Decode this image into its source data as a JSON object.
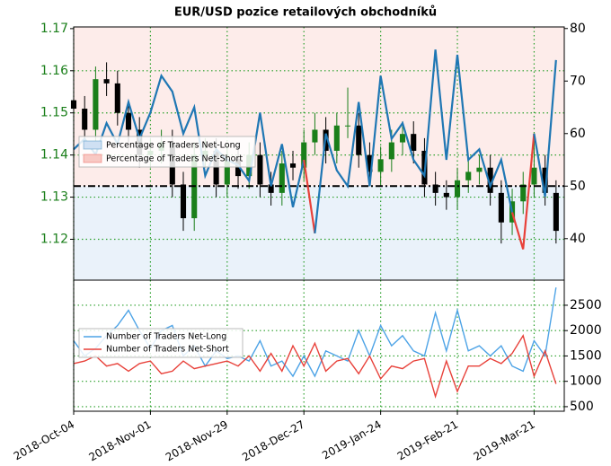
{
  "chart_data": [
    {
      "type": "candlestick",
      "title": "EUR/USD pozice retailových obchodníků",
      "x": [
        "2018-10-04",
        "2018-10-08",
        "2018-10-12",
        "2018-10-16",
        "2018-10-20",
        "2018-10-24",
        "2018-10-28",
        "2018-11-01",
        "2018-11-05",
        "2018-11-09",
        "2018-11-13",
        "2018-11-17",
        "2018-11-21",
        "2018-11-25",
        "2018-11-29",
        "2018-12-03",
        "2018-12-07",
        "2018-12-11",
        "2018-12-15",
        "2018-12-19",
        "2018-12-23",
        "2018-12-27",
        "2018-12-31",
        "2019-01-04",
        "2019-01-08",
        "2019-01-12",
        "2019-01-16",
        "2019-01-20",
        "2019-01-24",
        "2019-01-28",
        "2019-02-01",
        "2019-02-05",
        "2019-02-09",
        "2019-02-13",
        "2019-02-17",
        "2019-02-21",
        "2019-02-25",
        "2019-03-01",
        "2019-03-05",
        "2019-03-09",
        "2019-03-13",
        "2019-03-17",
        "2019-03-21",
        "2019-03-25",
        "2019-03-29"
      ],
      "open": [
        1.153,
        1.151,
        1.146,
        1.158,
        1.157,
        1.15,
        1.146,
        1.14,
        1.141,
        1.143,
        1.133,
        1.125,
        1.14,
        1.141,
        1.133,
        1.139,
        1.135,
        1.14,
        1.133,
        1.131,
        1.138,
        1.137,
        1.143,
        1.146,
        1.141,
        1.147,
        1.147,
        1.14,
        1.136,
        1.139,
        1.143,
        1.145,
        1.141,
        1.133,
        1.131,
        1.13,
        1.134,
        1.136,
        1.137,
        1.131,
        1.124,
        1.129,
        1.133,
        1.137,
        1.131
      ],
      "high": [
        1.156,
        1.154,
        1.161,
        1.162,
        1.16,
        1.153,
        1.149,
        1.144,
        1.146,
        1.146,
        1.136,
        1.143,
        1.144,
        1.144,
        1.142,
        1.142,
        1.143,
        1.143,
        1.136,
        1.141,
        1.141,
        1.146,
        1.15,
        1.149,
        1.15,
        1.156,
        1.15,
        1.143,
        1.142,
        1.146,
        1.148,
        1.148,
        1.144,
        1.136,
        1.134,
        1.137,
        1.139,
        1.14,
        1.14,
        1.134,
        1.132,
        1.136,
        1.144,
        1.14,
        1.134
      ],
      "low": [
        1.148,
        1.143,
        1.143,
        1.154,
        1.147,
        1.143,
        1.137,
        1.137,
        1.138,
        1.13,
        1.122,
        1.122,
        1.137,
        1.13,
        1.13,
        1.132,
        1.132,
        1.13,
        1.128,
        1.128,
        1.134,
        1.134,
        1.14,
        1.138,
        1.138,
        1.144,
        1.137,
        1.133,
        1.133,
        1.136,
        1.14,
        1.138,
        1.13,
        1.128,
        1.127,
        1.127,
        1.131,
        1.133,
        1.128,
        1.119,
        1.121,
        1.126,
        1.13,
        1.128,
        1.119
      ],
      "close": [
        1.151,
        1.146,
        1.158,
        1.157,
        1.15,
        1.146,
        1.14,
        1.141,
        1.143,
        1.133,
        1.125,
        1.14,
        1.141,
        1.133,
        1.139,
        1.135,
        1.14,
        1.133,
        1.131,
        1.138,
        1.137,
        1.143,
        1.146,
        1.141,
        1.147,
        1.147,
        1.14,
        1.136,
        1.139,
        1.143,
        1.145,
        1.141,
        1.133,
        1.131,
        1.13,
        1.134,
        1.136,
        1.137,
        1.131,
        1.124,
        1.129,
        1.133,
        1.137,
        1.131,
        1.122
      ],
      "up_color": "#1a7f1a",
      "down_color": "#000000",
      "xlim": [
        "2018-10-04",
        "2019-04-01"
      ],
      "xticks": [
        "2018-10-04",
        "2018-11-01",
        "2018-11-29",
        "2018-12-27",
        "2019-01-24",
        "2019-02-21",
        "2019-03-21"
      ],
      "ylim": [
        1.1103,
        1.1704
      ],
      "yticks": [
        1.12,
        1.13,
        1.14,
        1.15,
        1.16,
        1.17
      ],
      "y2lim": [
        32.1,
        80.3
      ],
      "y2ticks": [
        40,
        50,
        60,
        70,
        80
      ],
      "threshold": 50,
      "series": [
        {
          "name": "Percentage of Traders Net-Long",
          "color": "#1f77b4",
          "fill": "#cfe0f3",
          "axis": "y2",
          "values": [
            57,
            59,
            56,
            62,
            58,
            66,
            59,
            64,
            71,
            68,
            60,
            65,
            52,
            57,
            55,
            54,
            51,
            64,
            50,
            58,
            46,
            55,
            41,
            60,
            53,
            50,
            66,
            50,
            71,
            59,
            62,
            55,
            52,
            76,
            55,
            75,
            55,
            57,
            50,
            55,
            45,
            38,
            60,
            48,
            74
          ]
        }
      ],
      "short_legend": {
        "name": "Percentage of Traders Net-Short",
        "color": "#e8413a",
        "fill": "#f8c9c4"
      },
      "grid": true
    },
    {
      "type": "line",
      "x": [
        "2018-10-04",
        "2018-10-08",
        "2018-10-12",
        "2018-10-16",
        "2018-10-20",
        "2018-10-24",
        "2018-10-28",
        "2018-11-01",
        "2018-11-05",
        "2018-11-09",
        "2018-11-13",
        "2018-11-17",
        "2018-11-21",
        "2018-11-25",
        "2018-11-29",
        "2018-12-03",
        "2018-12-07",
        "2018-12-11",
        "2018-12-15",
        "2018-12-19",
        "2018-12-23",
        "2018-12-27",
        "2018-12-31",
        "2019-01-04",
        "2019-01-08",
        "2019-01-12",
        "2019-01-16",
        "2019-01-20",
        "2019-01-24",
        "2019-01-28",
        "2019-02-01",
        "2019-02-05",
        "2019-02-09",
        "2019-02-13",
        "2019-02-17",
        "2019-02-21",
        "2019-02-25",
        "2019-03-01",
        "2019-03-05",
        "2019-03-09",
        "2019-03-13",
        "2019-03-17",
        "2019-03-21",
        "2019-03-25",
        "2019-03-29"
      ],
      "xlim": [
        "2018-10-04",
        "2019-04-01"
      ],
      "xticks": [
        {
          "value": "2018-10-04",
          "label": "2018-Oct-04"
        },
        {
          "value": "2018-11-01",
          "label": "2018-Nov-01"
        },
        {
          "value": "2018-11-29",
          "label": "2018-Nov-29"
        },
        {
          "value": "2018-12-27",
          "label": "2018-Dec-27"
        },
        {
          "value": "2019-01-24",
          "label": "2019-Jan-24"
        },
        {
          "value": "2019-02-21",
          "label": "2019-Feb-21"
        },
        {
          "value": "2019-03-21",
          "label": "2019-Mar-21"
        }
      ],
      "y2lim": [
        410,
        2995
      ],
      "y2ticks": [
        500,
        1000,
        1500,
        2000,
        2500
      ],
      "series": [
        {
          "name": "Number of Traders Net-Long",
          "color": "#4da3e6",
          "axis": "y2",
          "values": [
            1800,
            1500,
            1650,
            1900,
            2100,
            2400,
            2000,
            1650,
            2000,
            2100,
            1500,
            1700,
            1300,
            1600,
            1450,
            1500,
            1400,
            1800,
            1300,
            1400,
            1100,
            1500,
            1100,
            1600,
            1500,
            1400,
            2000,
            1500,
            2100,
            1700,
            1900,
            1600,
            1500,
            2350,
            1600,
            2400,
            1600,
            1700,
            1500,
            1700,
            1300,
            1200,
            1800,
            1500,
            2850
          ]
        },
        {
          "name": "Number of Traders Net-Short",
          "color": "#e8413a",
          "axis": "y2",
          "values": [
            1350,
            1400,
            1500,
            1300,
            1350,
            1200,
            1350,
            1400,
            1150,
            1200,
            1400,
            1250,
            1300,
            1350,
            1400,
            1300,
            1500,
            1200,
            1550,
            1200,
            1700,
            1300,
            1750,
            1200,
            1400,
            1450,
            1150,
            1500,
            1050,
            1300,
            1250,
            1400,
            1450,
            700,
            1400,
            800,
            1300,
            1300,
            1450,
            1350,
            1550,
            1900,
            1100,
            1600,
            950
          ]
        }
      ],
      "grid": true
    }
  ]
}
